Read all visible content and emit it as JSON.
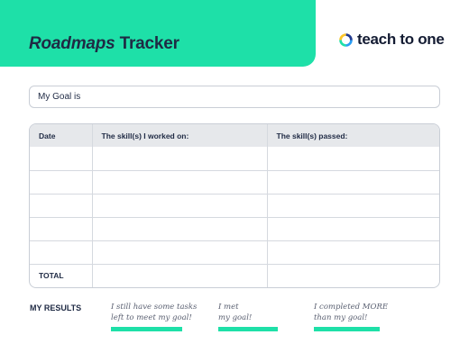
{
  "header": {
    "title_italic": "Roadmaps",
    "title_rest": " Tracker",
    "accent_color": "#1ee0a8"
  },
  "brand": {
    "name": "teach to one",
    "icon": "multicolor-ring-logo"
  },
  "goal": {
    "label": "My Goal is"
  },
  "tracker": {
    "headers": [
      "Date",
      "The skill(s) I worked on:",
      "The skill(s) passed:"
    ],
    "rows": [
      [
        "",
        "",
        ""
      ],
      [
        "",
        "",
        ""
      ],
      [
        "",
        "",
        ""
      ],
      [
        "",
        "",
        ""
      ],
      [
        "",
        "",
        ""
      ]
    ],
    "total_label": "TOTAL"
  },
  "results": {
    "label": "MY RESULTS",
    "options": [
      "I still have some tasks\nleft to meet my goal!",
      "I met\nmy goal!",
      "I completed MORE\nthan my goal!"
    ]
  }
}
